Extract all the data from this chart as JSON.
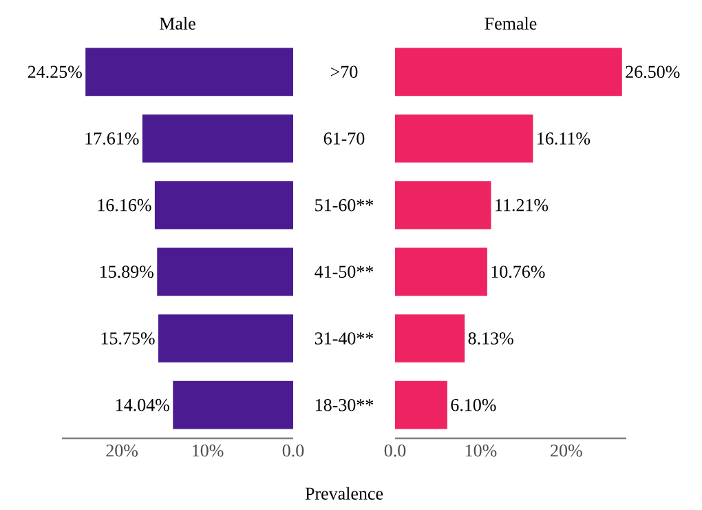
{
  "chart_data": [
    {
      "type": "bar",
      "orientation": "horizontal",
      "title": "Male",
      "xlabel": "Prevalence",
      "categories": [
        ">70",
        "61-70",
        "51-60**",
        "41-50**",
        "31-40**",
        "18-30**"
      ],
      "values": [
        24.25,
        17.61,
        16.16,
        15.89,
        15.75,
        14.04
      ],
      "value_labels": [
        "24.25%",
        "17.61%",
        "16.16%",
        "15.89%",
        "15.75%",
        "14.04%"
      ],
      "color": "#4b1c91",
      "xlim": [
        27,
        0
      ],
      "xticks": [
        {
          "value": 20,
          "label": "20%"
        },
        {
          "value": 10,
          "label": "10%"
        },
        {
          "value": 0,
          "label": "0.0"
        }
      ]
    },
    {
      "type": "bar",
      "orientation": "horizontal",
      "title": "Female",
      "categories": [
        null,
        null,
        null,
        null,
        null,
        null
      ],
      "values": [
        26.5,
        16.11,
        11.21,
        10.76,
        8.13,
        6.1
      ],
      "value_labels": [
        "26.50%",
        "16.11%",
        "11.21%",
        "10.76%",
        "8.13%",
        "6.10%"
      ],
      "color": "#ee2462",
      "xlim": [
        0,
        27
      ],
      "xticks": [
        {
          "value": 0,
          "label": "0.0"
        },
        {
          "value": 10,
          "label": "10%"
        },
        {
          "value": 20,
          "label": "20%"
        }
      ]
    }
  ]
}
